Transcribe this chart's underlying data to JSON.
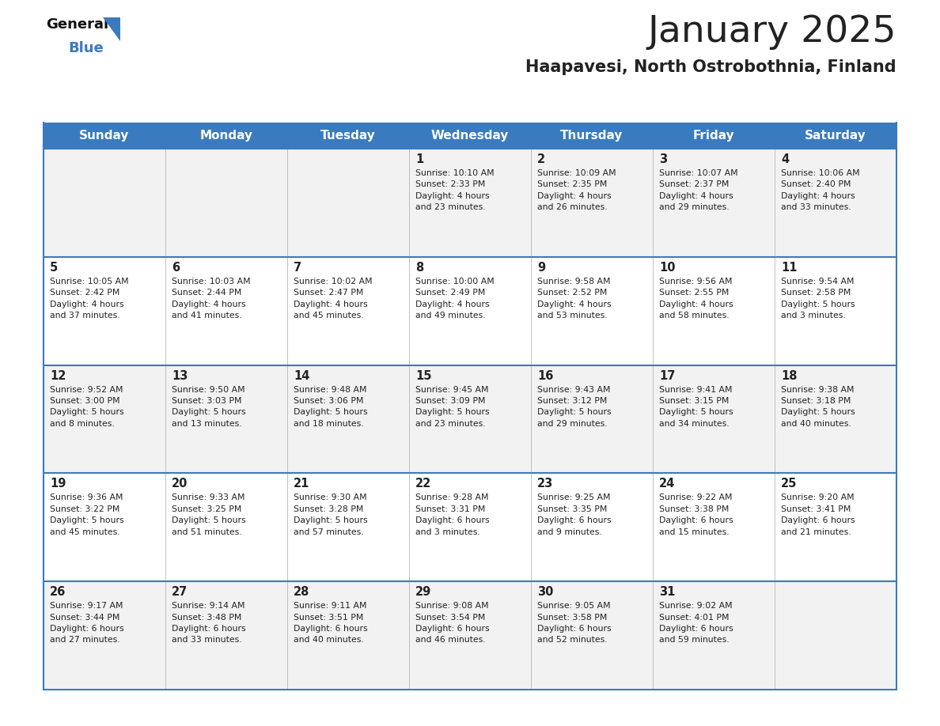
{
  "title": "January 2025",
  "subtitle": "Haapavesi, North Ostrobothnia, Finland",
  "header_color": "#3a7bbf",
  "header_text_color": "#ffffff",
  "cell_bg_even": "#f2f2f2",
  "cell_bg_odd": "#ffffff",
  "border_color": "#3a7bbf",
  "sep_color": "#aaaaaa",
  "title_color": "#222222",
  "subtitle_color": "#222222",
  "day_headers": [
    "Sunday",
    "Monday",
    "Tuesday",
    "Wednesday",
    "Thursday",
    "Friday",
    "Saturday"
  ],
  "calendar": [
    [
      {
        "day": "",
        "text": ""
      },
      {
        "day": "",
        "text": ""
      },
      {
        "day": "",
        "text": ""
      },
      {
        "day": "1",
        "text": "Sunrise: 10:10 AM\nSunset: 2:33 PM\nDaylight: 4 hours\nand 23 minutes."
      },
      {
        "day": "2",
        "text": "Sunrise: 10:09 AM\nSunset: 2:35 PM\nDaylight: 4 hours\nand 26 minutes."
      },
      {
        "day": "3",
        "text": "Sunrise: 10:07 AM\nSunset: 2:37 PM\nDaylight: 4 hours\nand 29 minutes."
      },
      {
        "day": "4",
        "text": "Sunrise: 10:06 AM\nSunset: 2:40 PM\nDaylight: 4 hours\nand 33 minutes."
      }
    ],
    [
      {
        "day": "5",
        "text": "Sunrise: 10:05 AM\nSunset: 2:42 PM\nDaylight: 4 hours\nand 37 minutes."
      },
      {
        "day": "6",
        "text": "Sunrise: 10:03 AM\nSunset: 2:44 PM\nDaylight: 4 hours\nand 41 minutes."
      },
      {
        "day": "7",
        "text": "Sunrise: 10:02 AM\nSunset: 2:47 PM\nDaylight: 4 hours\nand 45 minutes."
      },
      {
        "day": "8",
        "text": "Sunrise: 10:00 AM\nSunset: 2:49 PM\nDaylight: 4 hours\nand 49 minutes."
      },
      {
        "day": "9",
        "text": "Sunrise: 9:58 AM\nSunset: 2:52 PM\nDaylight: 4 hours\nand 53 minutes."
      },
      {
        "day": "10",
        "text": "Sunrise: 9:56 AM\nSunset: 2:55 PM\nDaylight: 4 hours\nand 58 minutes."
      },
      {
        "day": "11",
        "text": "Sunrise: 9:54 AM\nSunset: 2:58 PM\nDaylight: 5 hours\nand 3 minutes."
      }
    ],
    [
      {
        "day": "12",
        "text": "Sunrise: 9:52 AM\nSunset: 3:00 PM\nDaylight: 5 hours\nand 8 minutes."
      },
      {
        "day": "13",
        "text": "Sunrise: 9:50 AM\nSunset: 3:03 PM\nDaylight: 5 hours\nand 13 minutes."
      },
      {
        "day": "14",
        "text": "Sunrise: 9:48 AM\nSunset: 3:06 PM\nDaylight: 5 hours\nand 18 minutes."
      },
      {
        "day": "15",
        "text": "Sunrise: 9:45 AM\nSunset: 3:09 PM\nDaylight: 5 hours\nand 23 minutes."
      },
      {
        "day": "16",
        "text": "Sunrise: 9:43 AM\nSunset: 3:12 PM\nDaylight: 5 hours\nand 29 minutes."
      },
      {
        "day": "17",
        "text": "Sunrise: 9:41 AM\nSunset: 3:15 PM\nDaylight: 5 hours\nand 34 minutes."
      },
      {
        "day": "18",
        "text": "Sunrise: 9:38 AM\nSunset: 3:18 PM\nDaylight: 5 hours\nand 40 minutes."
      }
    ],
    [
      {
        "day": "19",
        "text": "Sunrise: 9:36 AM\nSunset: 3:22 PM\nDaylight: 5 hours\nand 45 minutes."
      },
      {
        "day": "20",
        "text": "Sunrise: 9:33 AM\nSunset: 3:25 PM\nDaylight: 5 hours\nand 51 minutes."
      },
      {
        "day": "21",
        "text": "Sunrise: 9:30 AM\nSunset: 3:28 PM\nDaylight: 5 hours\nand 57 minutes."
      },
      {
        "day": "22",
        "text": "Sunrise: 9:28 AM\nSunset: 3:31 PM\nDaylight: 6 hours\nand 3 minutes."
      },
      {
        "day": "23",
        "text": "Sunrise: 9:25 AM\nSunset: 3:35 PM\nDaylight: 6 hours\nand 9 minutes."
      },
      {
        "day": "24",
        "text": "Sunrise: 9:22 AM\nSunset: 3:38 PM\nDaylight: 6 hours\nand 15 minutes."
      },
      {
        "day": "25",
        "text": "Sunrise: 9:20 AM\nSunset: 3:41 PM\nDaylight: 6 hours\nand 21 minutes."
      }
    ],
    [
      {
        "day": "26",
        "text": "Sunrise: 9:17 AM\nSunset: 3:44 PM\nDaylight: 6 hours\nand 27 minutes."
      },
      {
        "day": "27",
        "text": "Sunrise: 9:14 AM\nSunset: 3:48 PM\nDaylight: 6 hours\nand 33 minutes."
      },
      {
        "day": "28",
        "text": "Sunrise: 9:11 AM\nSunset: 3:51 PM\nDaylight: 6 hours\nand 40 minutes."
      },
      {
        "day": "29",
        "text": "Sunrise: 9:08 AM\nSunset: 3:54 PM\nDaylight: 6 hours\nand 46 minutes."
      },
      {
        "day": "30",
        "text": "Sunrise: 9:05 AM\nSunset: 3:58 PM\nDaylight: 6 hours\nand 52 minutes."
      },
      {
        "day": "31",
        "text": "Sunrise: 9:02 AM\nSunset: 4:01 PM\nDaylight: 6 hours\nand 59 minutes."
      },
      {
        "day": "",
        "text": ""
      }
    ]
  ],
  "logo_general_color": "#111111",
  "logo_blue_color": "#3a7bbf",
  "logo_triangle_color": "#3a7bbf"
}
